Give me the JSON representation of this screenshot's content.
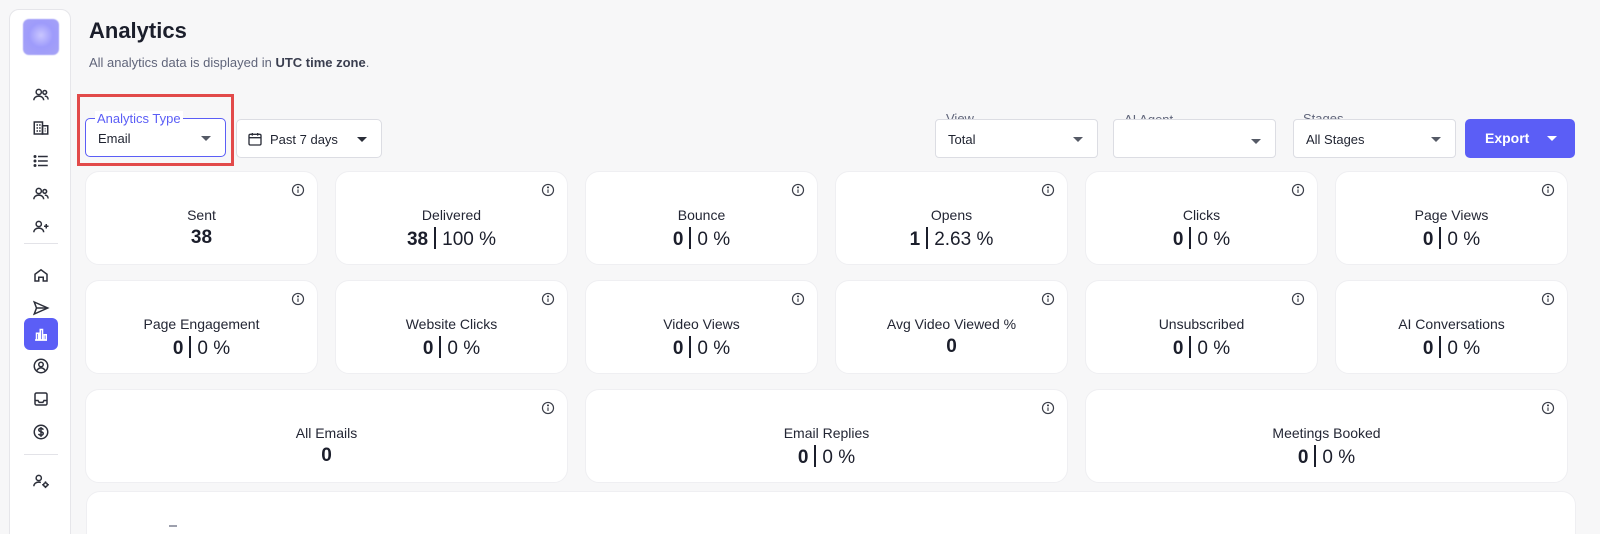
{
  "header": {
    "title": "Analytics",
    "subtitle_prefix": "All analytics data is displayed in ",
    "subtitle_bold": "UTC time zone",
    "subtitle_suffix": "."
  },
  "filters": {
    "analytics_type": {
      "label": "Analytics Type",
      "value": "Email"
    },
    "date_range": {
      "value": "Past 7 days"
    },
    "view": {
      "label": "View",
      "value": "Total"
    },
    "ai_agent": {
      "label": "AI Agent",
      "value": ""
    },
    "stages": {
      "label": "Stages",
      "value": "All Stages"
    },
    "export_label": "Export"
  },
  "metrics_row1": [
    {
      "label": "Sent",
      "count": "38",
      "pct": ""
    },
    {
      "label": "Delivered",
      "count": "38",
      "pct": "100 %"
    },
    {
      "label": "Bounce",
      "count": "0",
      "pct": "0 %"
    },
    {
      "label": "Opens",
      "count": "1",
      "pct": "2.63 %"
    },
    {
      "label": "Clicks",
      "count": "0",
      "pct": "0 %"
    },
    {
      "label": "Page Views",
      "count": "0",
      "pct": "0 %"
    }
  ],
  "metrics_row2": [
    {
      "label": "Page Engagement",
      "count": "0",
      "pct": "0 %"
    },
    {
      "label": "Website Clicks",
      "count": "0",
      "pct": "0 %"
    },
    {
      "label": "Video Views",
      "count": "0",
      "pct": "0 %"
    },
    {
      "label": "Avg Video Viewed %",
      "count": "0",
      "pct": ""
    },
    {
      "label": "Unsubscribed",
      "count": "0",
      "pct": "0 %"
    },
    {
      "label": "AI Conversations",
      "count": "0",
      "pct": "0 %"
    }
  ],
  "metrics_row3": [
    {
      "label": "All Emails",
      "count": "0",
      "pct": ""
    },
    {
      "label": "Email Replies",
      "count": "0",
      "pct": "0 %"
    },
    {
      "label": "Meetings Booked",
      "count": "0",
      "pct": "0 %"
    }
  ],
  "colors": {
    "accent": "#5b5ef6",
    "highlight": "#e24a4a",
    "background": "#f7f7f8"
  }
}
